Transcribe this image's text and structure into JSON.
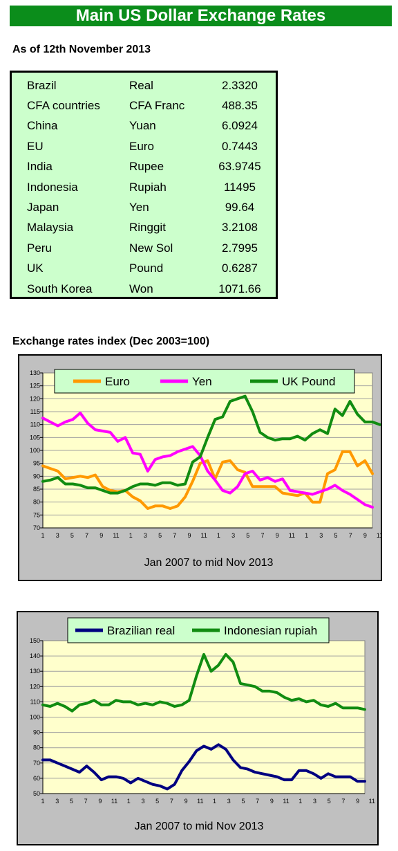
{
  "header": {
    "title": "Main US Dollar Exchange Rates",
    "as_of": "As of 12th November 2013"
  },
  "rates": [
    {
      "country": "Brazil",
      "currency": "Real",
      "value": "2.3320"
    },
    {
      "country": "CFA countries",
      "currency": "CFA Franc",
      "value": "488.35"
    },
    {
      "country": "China",
      "currency": "Yuan",
      "value": "6.0924"
    },
    {
      "country": "EU",
      "currency": "Euro",
      "value": "0.7443"
    },
    {
      "country": "India",
      "currency": "Rupee",
      "value": "63.9745"
    },
    {
      "country": "Indonesia",
      "currency": "Rupiah",
      "value": "11495"
    },
    {
      "country": "Japan",
      "currency": "Yen",
      "value": "99.64"
    },
    {
      "country": "Malaysia",
      "currency": "Ringgit",
      "value": "3.2108"
    },
    {
      "country": "Peru",
      "currency": "New Sol",
      "value": "2.7995"
    },
    {
      "country": "UK",
      "currency": "Pound",
      "value": "0.6287"
    },
    {
      "country": "South Korea",
      "currency": "Won",
      "value": "1071.66"
    }
  ],
  "index_section_title": "Exchange rates index (Dec 2003=100)",
  "chart_data": [
    {
      "type": "line",
      "title": "",
      "xlabel": "Jan 2007 to mid Nov 2013",
      "ylabel": "",
      "ylim": [
        70,
        130
      ],
      "yticks": [
        70,
        75,
        80,
        85,
        90,
        95,
        100,
        105,
        110,
        115,
        120,
        125,
        130
      ],
      "xtick_labels": [
        "1",
        "3",
        "5",
        "7",
        "9",
        "11",
        "1",
        "3",
        "5",
        "7",
        "9",
        "11",
        "1",
        "3",
        "5",
        "7",
        "9",
        "11",
        "1",
        "3",
        "5",
        "7",
        "9",
        "11",
        "1",
        "3",
        "5",
        "7",
        "9",
        "11",
        "1",
        "3",
        "5",
        "7",
        "9",
        "11",
        "1",
        "3",
        "5",
        "7"
      ],
      "grid": true,
      "legend": "top",
      "series": [
        {
          "name": "Euro",
          "color": "#ff9900",
          "values": [
            94,
            93,
            92,
            89,
            89.5,
            90,
            89.5,
            90.5,
            86,
            84.5,
            84,
            84.5,
            82,
            80.5,
            77.5,
            78.5,
            78.5,
            77.5,
            78.5,
            82,
            88,
            95,
            96,
            89,
            95.5,
            96,
            92.5,
            91.5,
            86,
            86,
            86,
            86,
            83.5,
            83,
            82.5,
            83.5,
            80,
            80,
            91,
            92.5,
            99.5,
            99.5,
            94,
            96,
            91
          ]
        },
        {
          "name": "Yen",
          "color": "#ff00ff",
          "values": [
            112.5,
            111,
            109.5,
            111,
            112,
            114.5,
            110.5,
            108,
            107.5,
            107,
            103.5,
            105,
            99,
            98.5,
            92,
            96.5,
            97.5,
            98,
            99.5,
            100.5,
            101.5,
            98,
            92,
            88.5,
            84.5,
            83.5,
            86,
            91,
            92,
            88.5,
            89.5,
            88,
            89,
            84.5,
            84,
            83.5,
            83,
            84,
            85,
            86.5,
            84.5,
            83,
            81,
            79,
            78
          ]
        },
        {
          "name": "UK Pound",
          "color": "#118c11",
          "values": [
            88,
            88.5,
            89.5,
            87,
            87,
            86.5,
            85.5,
            85.5,
            84.5,
            83.5,
            83.5,
            84.5,
            86,
            87,
            87,
            86.5,
            87.5,
            87.5,
            86.5,
            87,
            95.5,
            97.5,
            105,
            112,
            113,
            119,
            120,
            121,
            115,
            107,
            105,
            104,
            104.5,
            104.5,
            105.5,
            104,
            106.5,
            108,
            106.5,
            116,
            113.5,
            119,
            114,
            111,
            111,
            110
          ]
        }
      ]
    },
    {
      "type": "line",
      "title": "",
      "xlabel": "Jan 2007 to mid Nov 2013",
      "ylabel": "",
      "ylim": [
        50,
        150
      ],
      "yticks": [
        50,
        60,
        70,
        80,
        90,
        100,
        110,
        120,
        130,
        140,
        150
      ],
      "xtick_labels": [
        "1",
        "3",
        "5",
        "7",
        "9",
        "11",
        "1",
        "3",
        "5",
        "7",
        "9",
        "11",
        "1",
        "3",
        "5",
        "7",
        "9",
        "11",
        "1",
        "3",
        "5",
        "7",
        "9",
        "11",
        "1",
        "3",
        "5",
        "7",
        "9",
        "11",
        "1",
        "3",
        "5",
        "7",
        "9",
        "11",
        "1",
        "3",
        "5",
        "7"
      ],
      "grid": true,
      "legend": "top",
      "series": [
        {
          "name": "Brazilian real",
          "color": "#000080",
          "values": [
            72,
            72,
            70,
            68,
            66,
            64,
            68,
            64,
            59,
            61,
            61,
            60,
            57,
            60,
            58,
            56,
            55,
            53,
            56,
            65,
            71,
            78,
            81,
            79,
            82,
            79,
            72,
            67,
            66,
            64,
            63,
            62,
            61,
            59,
            59,
            65,
            65,
            63,
            60,
            63,
            61,
            61,
            61,
            58,
            58
          ]
        },
        {
          "name": "Indonesian rupiah",
          "color": "#118c11",
          "values": [
            108,
            107,
            109,
            107,
            104,
            108,
            109,
            111,
            108,
            108,
            111,
            110,
            110,
            108,
            109,
            108,
            110,
            109,
            107,
            108,
            111,
            127,
            141,
            130,
            134,
            141,
            136,
            122,
            121,
            120,
            117,
            117,
            116,
            113,
            111,
            112,
            110,
            111,
            108,
            107,
            109,
            106,
            106,
            106,
            105
          ]
        }
      ]
    }
  ]
}
